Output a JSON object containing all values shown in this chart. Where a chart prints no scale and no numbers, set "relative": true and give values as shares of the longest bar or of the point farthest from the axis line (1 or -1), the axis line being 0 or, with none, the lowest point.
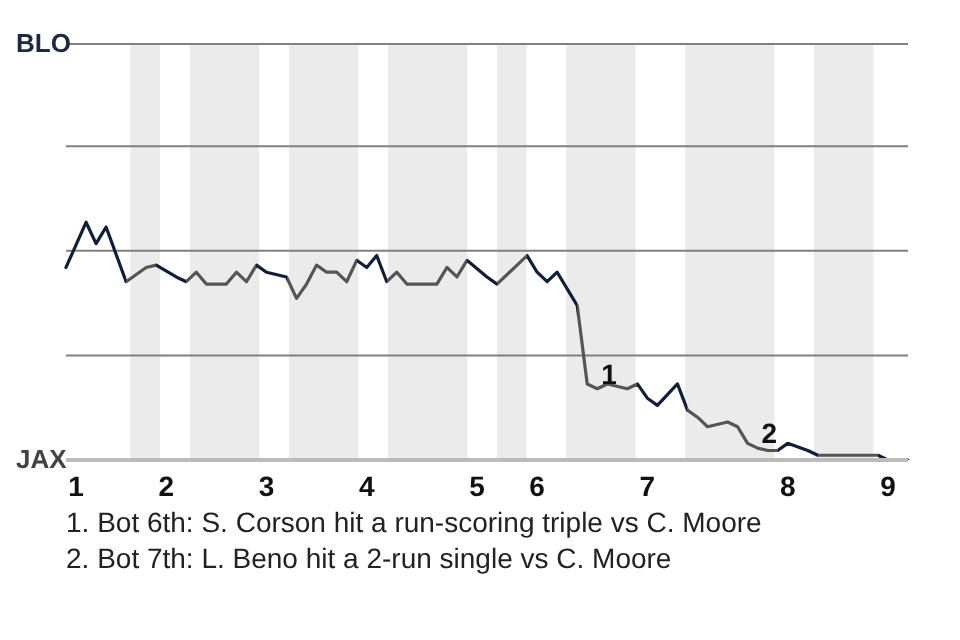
{
  "chart_data": {
    "type": "line",
    "relative": true,
    "categories": [
      null,
      "1",
      null,
      null,
      null,
      null,
      null,
      null,
      null,
      null,
      "2",
      null,
      null,
      null,
      null,
      null,
      null,
      null,
      null,
      null,
      "3",
      null,
      null,
      null,
      null,
      null,
      null,
      null,
      null,
      null,
      "4",
      null,
      null,
      null,
      null,
      null,
      null,
      null,
      null,
      null,
      null,
      "5",
      null,
      null,
      null,
      null,
      null,
      "6",
      null,
      null,
      null,
      null,
      null,
      null,
      null,
      null,
      null,
      null,
      "7",
      null,
      null,
      null,
      null,
      null,
      null,
      null,
      null,
      null,
      null,
      null,
      null,
      null,
      "8",
      null,
      null,
      null,
      null,
      null,
      null,
      null,
      null,
      null,
      "9",
      null,
      null
    ],
    "series": [
      {
        "values": [
          0.81,
          null,
          1,
          0.91,
          0.98,
          null,
          0.75,
          null,
          0.81,
          0.82,
          null,
          0.77,
          0.75,
          0.79,
          0.74,
          null,
          0.74,
          0.79,
          0.75,
          0.82,
          0.79,
          null,
          0.77,
          0.68,
          0.74,
          0.82,
          0.79,
          0.79,
          0.75,
          0.84,
          0.81,
          0.86,
          0.75,
          0.79,
          0.74,
          null,
          null,
          0.74,
          0.81,
          0.77,
          0.84,
          null,
          0.77,
          0.74,
          null,
          0.82,
          0.86,
          0.79,
          0.75,
          0.79,
          0.72,
          0.65,
          0.32,
          0.3,
          0.32,
          null,
          0.3,
          0.32,
          0.26,
          0.23,
          null,
          0.32,
          0.21,
          0.18,
          0.14,
          null,
          0.16,
          0.14,
          0.07,
          0.05,
          0.04,
          0.04,
          0.07,
          null,
          0.04,
          0.02,
          null,
          null,
          null,
          null,
          null,
          0.02,
          0,
          null,
          0
        ],
        "colors": [
          "#0d1f3c",
          null,
          "#0d1f3c",
          "#0d1f3c",
          "#0d1f3c",
          null,
          "#555555",
          null,
          "#555555",
          "#0d1f3c",
          null,
          "#0d1f3c",
          "#555555",
          "#555555",
          "#555555",
          null,
          "#555555",
          "#555555",
          "#555555",
          "#0d1f3c",
          "#0d1f3c",
          null,
          "#555555",
          "#555555",
          "#555555",
          "#555555",
          "#555555",
          "#555555",
          "#555555",
          "#0d1f3c",
          "#0d1f3c",
          "#0d1f3c",
          "#555555",
          "#555555",
          "#555555",
          null,
          null,
          "#555555",
          "#555555",
          "#555555",
          "#0d1f3c",
          null,
          "#0d1f3c",
          "#555555",
          null,
          "#555555",
          "#0d1f3c",
          "#0d1f3c",
          "#0d1f3c",
          "#0d1f3c",
          "#0d1f3c",
          "#555555",
          "#555555",
          "#555555",
          "#555555",
          null,
          "#555555",
          "#0d1f3c",
          "#0d1f3c",
          "#0d1f3c",
          null,
          "#0d1f3c",
          "#555555",
          "#555555",
          "#555555",
          null,
          "#555555",
          "#555555",
          "#555555",
          "#555555",
          "#555555",
          "#0d1f3c",
          "#0d1f3c",
          null,
          "#0d1f3c",
          "#555555",
          null,
          null,
          null,
          null,
          null,
          "#0d1f3c",
          "#0d1f3c",
          null,
          "#0d1f3c"
        ]
      }
    ],
    "annotations": [
      "BLO",
      "JAX",
      {
        "text": "1",
        "y": 0.32
      },
      {
        "text": "2",
        "y": 0.07
      },
      "1. Bot 6th: S. Corson hit a run-scoring triple vs C. Moore",
      "2. Bot 7th: L. Beno hit a 2-run single vs C. Moore"
    ],
    "ref_lines": [
      {
        "axis": "y",
        "value": 0.44,
        "color": "#808080"
      },
      {
        "axis": "y",
        "value": 0.88,
        "color": "#808080"
      },
      {
        "axis": "y",
        "value": 1.32,
        "color": "#808080"
      }
    ],
    "marker": "none",
    "line_style": "solid"
  }
}
